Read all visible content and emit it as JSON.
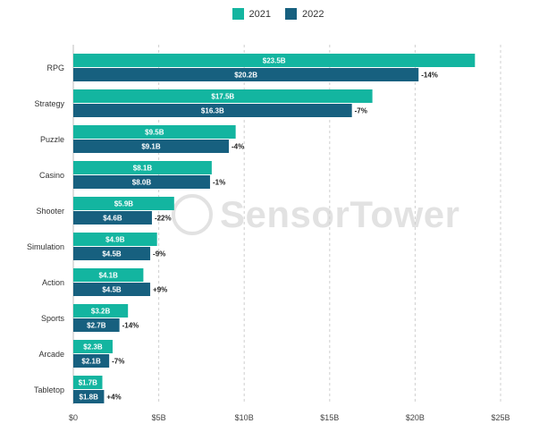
{
  "legend": {
    "items": [
      {
        "label": "2021"
      },
      {
        "label": "2022"
      }
    ]
  },
  "watermark": {
    "text": "SensorTower"
  },
  "colors": {
    "series_2021": "#13b5a0",
    "series_2022": "#17607f",
    "grid": "#cfcfcf"
  },
  "chart_data": {
    "type": "bar",
    "orientation": "horizontal",
    "categories": [
      "RPG",
      "Strategy",
      "Puzzle",
      "Casino",
      "Shooter",
      "Simulation",
      "Action",
      "Sports",
      "Arcade",
      "Tabletop"
    ],
    "series": [
      {
        "name": "2021",
        "values": [
          23.5,
          17.5,
          9.5,
          8.1,
          5.9,
          4.9,
          4.1,
          3.2,
          2.3,
          1.7
        ],
        "labels": [
          "$23.5B",
          "$17.5B",
          "$9.5B",
          "$8.1B",
          "$5.9B",
          "$4.9B",
          "$4.1B",
          "$3.2B",
          "$2.3B",
          "$1.7B"
        ]
      },
      {
        "name": "2022",
        "values": [
          20.2,
          16.3,
          9.1,
          8.0,
          4.6,
          4.5,
          4.5,
          2.7,
          2.1,
          1.8
        ],
        "labels": [
          "$20.2B",
          "$16.3B",
          "$9.1B",
          "$8.0B",
          "$4.6B",
          "$4.5B",
          "$4.5B",
          "$2.7B",
          "$2.1B",
          "$1.8B"
        ]
      }
    ],
    "changes": [
      "-14%",
      "-7%",
      "-4%",
      "-1%",
      "-22%",
      "-9%",
      "+9%",
      "-14%",
      "-7%",
      "+4%"
    ],
    "xlim": [
      0,
      25
    ],
    "xticks": [
      0,
      5,
      10,
      15,
      20,
      25
    ],
    "xtick_labels": [
      "$0",
      "$5B",
      "$10B",
      "$15B",
      "$20B",
      "$25B"
    ],
    "grid": "vertical dashed",
    "legend_position": "top-center",
    "title": "",
    "xlabel": "",
    "ylabel": ""
  }
}
